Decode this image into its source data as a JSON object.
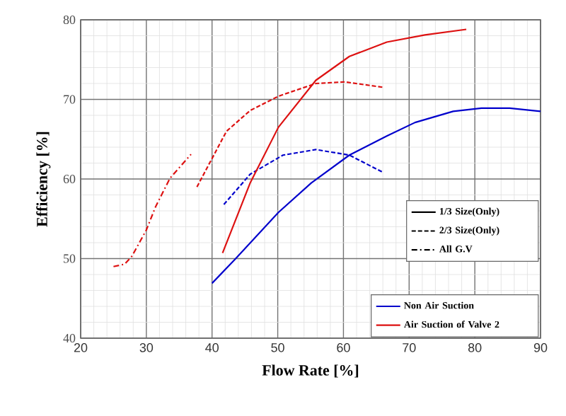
{
  "chart_data": {
    "type": "line",
    "xlabel": "Flow Rate  [%]",
    "ylabel": "Efficiency  [%]",
    "xlim": [
      20,
      90
    ],
    "ylim": [
      40,
      80
    ],
    "xticks": [
      20,
      30,
      40,
      50,
      60,
      70,
      80,
      90
    ],
    "yticks": [
      40,
      50,
      60,
      70,
      80
    ],
    "grid": true,
    "annotations": [
      "1/3 Size(Only)",
      "2/3 Size(Only)",
      "All G.V",
      "Non Air Suction",
      "Air Suction of Valve 2"
    ],
    "series": [
      {
        "color": "#0000cc",
        "line_style": "solid",
        "x": [
          40.0,
          43.6,
          50.1,
          55.1,
          60.9,
          66.6,
          70.9,
          76.7,
          81,
          85.3,
          90
        ],
        "values": [
          46.9,
          50,
          55.8,
          59.5,
          63.0,
          65.4,
          67.1,
          68.5,
          68.9,
          68.9,
          68.5
        ]
      },
      {
        "color": "#0000cc",
        "line_style": "dashed",
        "x": [
          41.8,
          45.8,
          50.8,
          55.8,
          60.9,
          66.1
        ],
        "values": [
          56.8,
          60.6,
          63.0,
          63.7,
          63.0,
          60.8
        ]
      },
      {
        "color": "#dd1111",
        "line_style": "solid",
        "x": [
          41.6,
          45.8,
          50.1,
          55.8,
          60.9,
          66.6,
          72.4,
          78.7
        ],
        "values": [
          50.7,
          59.5,
          66.5,
          72.4,
          75.4,
          77.2,
          78.1,
          78.8
        ]
      },
      {
        "color": "#dd1111",
        "line_style": "dashed",
        "x": [
          37.7,
          42.2,
          45.8,
          50.1,
          55.8,
          60.2,
          66.2
        ],
        "values": [
          59.0,
          66.0,
          68.6,
          70.4,
          72.0,
          72.2,
          71.5
        ]
      },
      {
        "color": "#dd1111",
        "line_style": "dashdot",
        "x": [
          25,
          26.7,
          27.8,
          30,
          31.4,
          33.6,
          36.8
        ],
        "values": [
          49.0,
          49.3,
          50.3,
          53.6,
          56.5,
          60.1,
          63.1
        ]
      }
    ]
  }
}
